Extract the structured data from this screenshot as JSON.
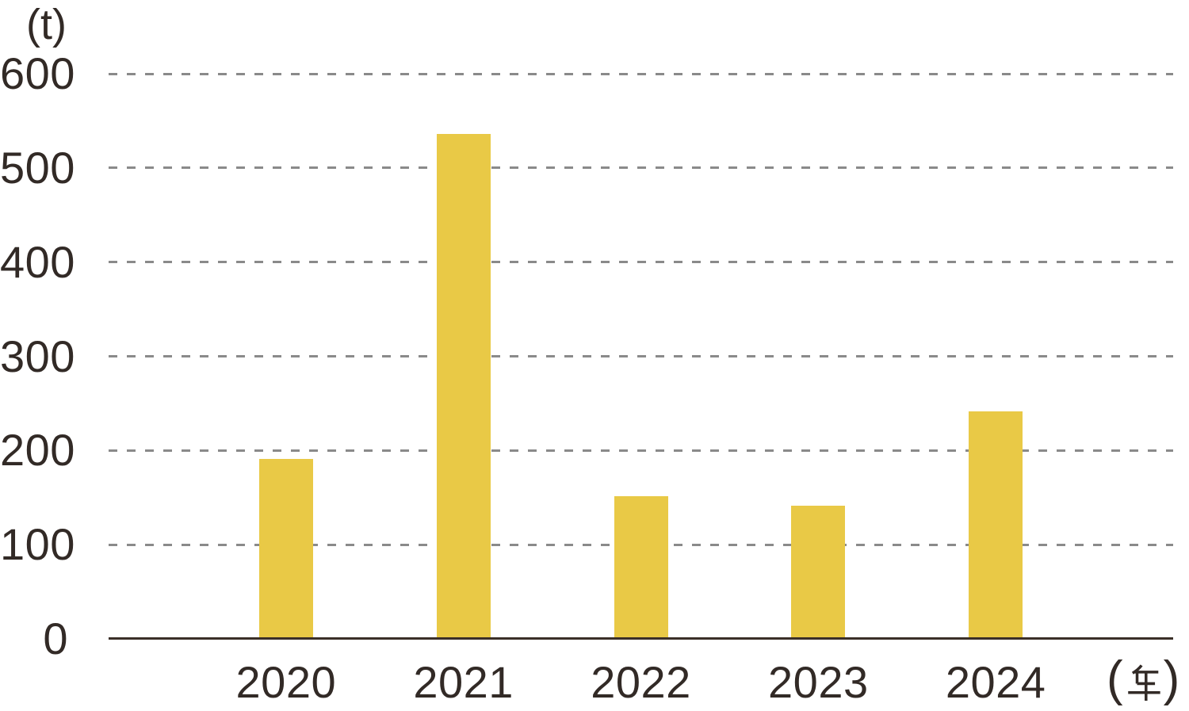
{
  "chart_data": {
    "type": "bar",
    "title": "",
    "y_unit": "(t)",
    "x_unit": "(年)",
    "x_unit_open": "(",
    "x_unit_kanji": "年",
    "x_unit_close": ")",
    "categories": [
      "2020",
      "2021",
      "2022",
      "2023",
      "2024"
    ],
    "values": [
      190,
      535,
      150,
      140,
      240
    ],
    "ylim": [
      0,
      600
    ],
    "yticks": [
      0,
      100,
      200,
      300,
      400,
      500,
      600
    ],
    "grid": "horizontal-dashed",
    "legend_position": "none",
    "colors": {
      "bar": "#e9c946",
      "axis": "#3a2f28",
      "text": "#322a26",
      "gridline": "#8a8a8a",
      "background": "#ffffff"
    }
  }
}
